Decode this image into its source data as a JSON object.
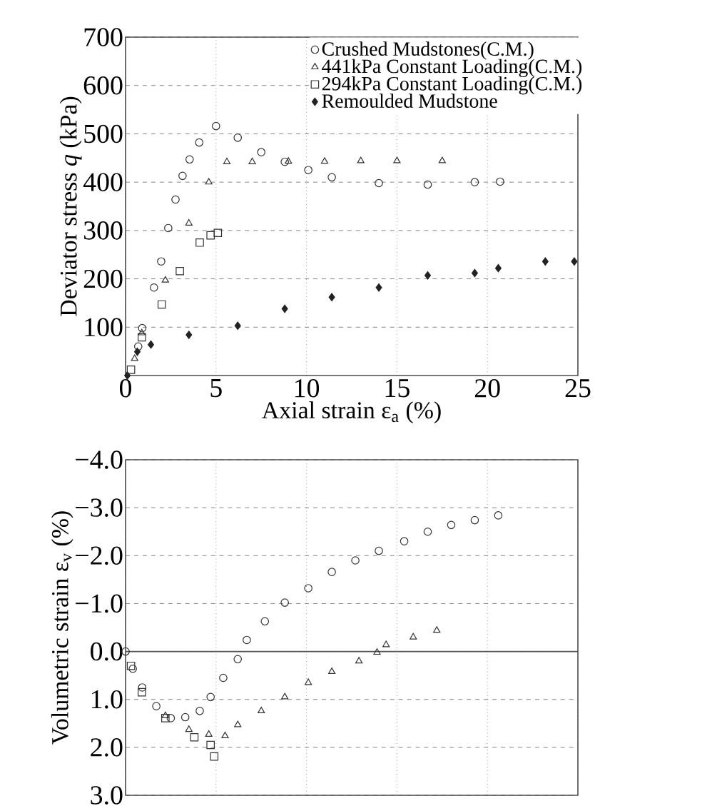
{
  "chart_data": [
    {
      "type": "scatter",
      "xlabel": "Axial strain  ε$_{a}$ (%)",
      "ylabel": "Deviator stress *q* (kPa)",
      "xlim": [
        0,
        25
      ],
      "ylim": [
        0,
        700
      ],
      "xticks": [
        0,
        5,
        10,
        15,
        20,
        25
      ],
      "yticks": [
        100,
        200,
        300,
        400,
        500,
        600,
        700
      ],
      "grid": true,
      "legend": "top right",
      "series": [
        {
          "name": "Crushed Mudstones(C.M.)",
          "color": "#333333",
          "marker": "circle",
          "x": [
            0.7,
            0.92,
            1.57,
            1.97,
            2.36,
            2.76,
            3.15,
            3.54,
            4.07,
            5.0,
            6.2,
            7.5,
            8.8,
            10.1,
            11.4,
            14.0,
            16.7,
            19.3,
            20.7
          ],
          "values": [
            60,
            98,
            182,
            236,
            305,
            364,
            413,
            447,
            482,
            516,
            492,
            462,
            442,
            425,
            410,
            398,
            395,
            400,
            401
          ]
        },
        {
          "name": "441kPa Constant Loading(C.M.)",
          "color": "#333333",
          "marker": "triangle",
          "x": [
            0.5,
            0.9,
            2.2,
            3.5,
            4.6,
            5.6,
            7.0,
            9.0,
            11.0,
            13.0,
            15.0,
            17.5
          ],
          "values": [
            35,
            88,
            197,
            315,
            400,
            442,
            442,
            443,
            443,
            444,
            444,
            444
          ]
        },
        {
          "name": "294kPa Constant Loading(C.M.)",
          "color": "#333333",
          "marker": "square",
          "x": [
            0.3,
            0.9,
            2.0,
            3.0,
            4.1,
            4.7,
            5.1
          ],
          "values": [
            12,
            79,
            147,
            216,
            275,
            290,
            295
          ]
        },
        {
          "name": "Remoulded Mudstone",
          "color": "#222222",
          "marker": "diamond",
          "x": [
            0.1,
            0.65,
            1.4,
            3.5,
            6.2,
            8.8,
            11.4,
            14.0,
            16.7,
            19.3,
            20.6,
            23.2,
            24.8
          ],
          "values": [
            0,
            49,
            64,
            84,
            103,
            138,
            162,
            182,
            207,
            212,
            222,
            236,
            236
          ]
        }
      ]
    },
    {
      "type": "scatter",
      "ylabel": "Volumetric strain  ε$_{v}$ (%)",
      "xlim": [
        0,
        25
      ],
      "ylim": [
        3,
        -4
      ],
      "xticks": [
        {
          "value": 0,
          "label": null
        },
        {
          "value": 5,
          "label": null
        },
        {
          "value": 10,
          "label": null
        },
        {
          "value": 15,
          "label": null
        },
        {
          "value": 20,
          "label": null
        },
        {
          "value": 25,
          "label": null
        }
      ],
      "yticks": [
        {
          "value": -4,
          "label": "−4.0"
        },
        {
          "value": -3,
          "label": "−3.0"
        },
        {
          "value": -2,
          "label": "−2.0"
        },
        {
          "value": -1,
          "label": "−1.0"
        },
        {
          "value": 0,
          "label": "0.0"
        },
        {
          "value": 1,
          "label": "1.0"
        },
        {
          "value": 2,
          "label": "2.0"
        },
        {
          "value": 3,
          "label": "3.0"
        }
      ],
      "grid": true,
      "tick_labels": "y",
      "ref_lines": [
        {
          "axis": "y",
          "value": 0,
          "color": "#555555"
        }
      ],
      "series": [
        {
          "color": "#333333",
          "marker": "circle",
          "x": [
            0,
            0.4,
            0.92,
            1.7,
            2.5,
            3.3,
            4.1,
            4.7,
            5.4,
            6.2,
            6.7,
            7.7,
            8.8,
            10.1,
            11.4,
            12.7,
            14.0,
            15.4,
            16.7,
            18.0,
            19.3,
            20.6
          ],
          "values": [
            0,
            0.36,
            0.75,
            1.14,
            1.39,
            1.37,
            1.24,
            0.95,
            0.55,
            0.16,
            -0.24,
            -0.63,
            -1.02,
            -1.32,
            -1.66,
            -1.9,
            -2.1,
            -2.3,
            -2.5,
            -2.64,
            -2.74,
            -2.84
          ]
        },
        {
          "color": "#333333",
          "marker": "triangle",
          "x": [
            2.2,
            3.5,
            4.6,
            5.5,
            6.2,
            7.5,
            8.8,
            10.1,
            11.4,
            12.9,
            13.9,
            14.4,
            15.9,
            17.2
          ],
          "values": [
            1.34,
            1.63,
            1.73,
            1.76,
            1.53,
            1.24,
            0.95,
            0.65,
            0.42,
            0.2,
            0.02,
            -0.14,
            -0.3,
            -0.44
          ]
        },
        {
          "color": "#333333",
          "marker": "square",
          "x": [
            0.3,
            0.9,
            2.2,
            3.8,
            4.7,
            4.9
          ],
          "values": [
            0.3,
            0.85,
            1.39,
            1.79,
            1.95,
            2.19
          ]
        }
      ]
    }
  ]
}
